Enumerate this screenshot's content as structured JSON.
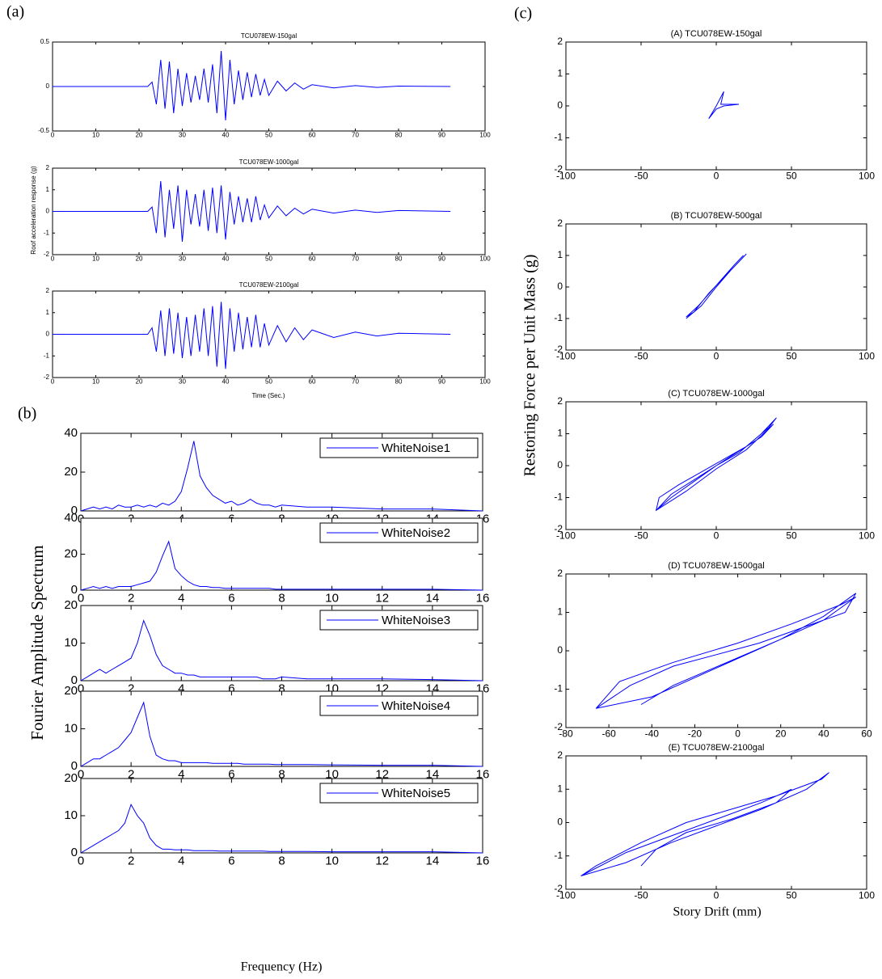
{
  "panels": {
    "a": {
      "label": "(a)",
      "y_label": "Roof acceleration response (g)",
      "x_label": "Time (Sec.)"
    },
    "b": {
      "label": "(b)",
      "y_label": "Fourier Amplitude Spectrum",
      "x_label": "Frequency (Hz)"
    },
    "c": {
      "label": "(c)",
      "y_label": "Restoring Force per Unit Mass (g)",
      "x_label": "Story Drift (mm)"
    }
  },
  "chart_data": [
    {
      "type": "line",
      "title": "TCU078EW-150gal",
      "x": [
        0,
        22,
        23,
        24,
        25,
        26,
        27,
        28,
        29,
        30,
        31,
        32,
        33,
        34,
        35,
        36,
        37,
        38,
        39,
        40,
        41,
        42,
        43,
        44,
        45,
        46,
        47,
        48,
        49,
        50,
        52,
        54,
        56,
        58,
        60,
        65,
        70,
        75,
        80,
        92
      ],
      "series": [
        {
          "color": "#0000ff",
          "values": [
            0,
            0,
            0.05,
            -0.2,
            0.3,
            -0.25,
            0.28,
            -0.3,
            0.2,
            -0.22,
            0.15,
            -0.18,
            0.12,
            -0.15,
            0.2,
            -0.18,
            0.25,
            -0.3,
            0.4,
            -0.38,
            0.3,
            -0.2,
            0.18,
            -0.15,
            0.16,
            -0.12,
            0.14,
            -0.1,
            0.08,
            -0.1,
            0.06,
            -0.05,
            0.04,
            -0.03,
            0.02,
            -0.015,
            0.01,
            -0.01,
            0.005,
            0
          ]
        }
      ],
      "xlim": [
        0,
        100
      ],
      "xticks": [
        0,
        10,
        20,
        30,
        40,
        50,
        60,
        70,
        80,
        90,
        100
      ],
      "ylim": [
        -0.5,
        0.5
      ],
      "yticks": [
        -0.5,
        0,
        0.5
      ]
    },
    {
      "type": "line",
      "title": "TCU078EW-1000gal",
      "x": [
        0,
        22,
        23,
        24,
        25,
        26,
        27,
        28,
        29,
        30,
        31,
        32,
        33,
        34,
        35,
        36,
        37,
        38,
        39,
        40,
        41,
        42,
        43,
        44,
        45,
        46,
        47,
        48,
        49,
        50,
        52,
        54,
        56,
        58,
        60,
        65,
        70,
        75,
        80,
        92
      ],
      "series": [
        {
          "color": "#0000ff",
          "values": [
            0,
            0,
            0.2,
            -1.0,
            1.4,
            -1.2,
            1.0,
            -0.8,
            1.2,
            -1.4,
            1.0,
            -0.6,
            0.8,
            -0.7,
            1.0,
            -0.9,
            1.1,
            -1.0,
            1.2,
            -1.3,
            0.9,
            -0.6,
            0.7,
            -0.5,
            0.6,
            -0.5,
            0.7,
            -0.4,
            0.3,
            -0.3,
            0.25,
            -0.2,
            0.15,
            -0.12,
            0.1,
            -0.08,
            0.06,
            -0.05,
            0.04,
            0
          ]
        }
      ],
      "xlim": [
        0,
        100
      ],
      "xticks": [
        0,
        10,
        20,
        30,
        40,
        50,
        60,
        70,
        80,
        90,
        100
      ],
      "ylim": [
        -2,
        2
      ],
      "yticks": [
        -2,
        -1,
        0,
        1,
        2
      ]
    },
    {
      "type": "line",
      "title": "TCU078EW-2100gal",
      "x": [
        0,
        22,
        23,
        24,
        25,
        26,
        27,
        28,
        29,
        30,
        31,
        32,
        33,
        34,
        35,
        36,
        37,
        38,
        39,
        40,
        41,
        42,
        43,
        44,
        45,
        46,
        47,
        48,
        49,
        50,
        52,
        54,
        56,
        58,
        60,
        65,
        70,
        75,
        80,
        92
      ],
      "series": [
        {
          "color": "#0000ff",
          "values": [
            0,
            0,
            0.3,
            -0.8,
            1.1,
            -1.0,
            1.2,
            -0.9,
            1.0,
            -1.1,
            0.8,
            -1.0,
            0.9,
            -0.8,
            1.2,
            -1.0,
            1.3,
            -1.5,
            1.5,
            -1.6,
            1.2,
            -0.8,
            1.0,
            -0.7,
            0.8,
            -0.6,
            0.9,
            -0.6,
            0.5,
            -0.5,
            0.4,
            -0.35,
            0.3,
            -0.25,
            0.2,
            -0.15,
            0.1,
            -0.08,
            0.05,
            0
          ]
        }
      ],
      "xlim": [
        0,
        100
      ],
      "xticks": [
        0,
        10,
        20,
        30,
        40,
        50,
        60,
        70,
        80,
        90,
        100
      ],
      "ylim": [
        -2,
        2
      ],
      "yticks": [
        -2,
        -1,
        0,
        1,
        2
      ]
    },
    {
      "type": "line",
      "x": [
        0,
        0.25,
        0.5,
        0.75,
        1,
        1.25,
        1.5,
        1.75,
        2,
        2.25,
        2.5,
        2.75,
        3,
        3.25,
        3.5,
        3.75,
        4,
        4.25,
        4.5,
        4.75,
        5,
        5.25,
        5.5,
        5.75,
        6,
        6.25,
        6.5,
        6.75,
        7,
        7.25,
        7.5,
        7.75,
        8,
        9,
        10,
        12,
        14,
        16
      ],
      "series": [
        {
          "name": "WhiteNoise1",
          "color": "#0000ff",
          "values": [
            0,
            1,
            2,
            1,
            2,
            1,
            3,
            2,
            2,
            3,
            2,
            3,
            2,
            4,
            3,
            5,
            10,
            22,
            36,
            18,
            12,
            8,
            6,
            4,
            5,
            3,
            4,
            6,
            4,
            3,
            3,
            2,
            3,
            2,
            2,
            1,
            1,
            0
          ]
        }
      ],
      "xlim": [
        0,
        16
      ],
      "xticks": [
        0,
        2,
        4,
        6,
        8,
        10,
        12,
        14,
        16
      ],
      "ylim": [
        0,
        40
      ],
      "yticks": [
        0,
        20,
        40
      ]
    },
    {
      "type": "line",
      "x": [
        0,
        0.25,
        0.5,
        0.75,
        1,
        1.25,
        1.5,
        1.75,
        2,
        2.25,
        2.5,
        2.75,
        3,
        3.25,
        3.5,
        3.75,
        4,
        4.25,
        4.5,
        4.75,
        5,
        5.25,
        5.5,
        5.75,
        6,
        6.25,
        6.5,
        6.75,
        7,
        7.25,
        7.5,
        7.75,
        8,
        9,
        10,
        12,
        14,
        16
      ],
      "series": [
        {
          "name": "WhiteNoise2",
          "color": "#0000ff",
          "values": [
            0,
            1,
            2,
            1,
            2,
            1,
            2,
            2,
            2,
            3,
            4,
            5,
            10,
            19,
            27,
            12,
            8,
            5,
            3,
            2,
            2,
            1.5,
            1.5,
            1,
            1,
            1,
            1,
            1,
            1,
            1,
            1,
            0.5,
            0.5,
            0.5,
            0.5,
            0.5,
            0.5,
            0
          ]
        }
      ],
      "xlim": [
        0,
        16
      ],
      "xticks": [
        0,
        2,
        4,
        6,
        8,
        10,
        12,
        14,
        16
      ],
      "ylim": [
        0,
        40
      ],
      "yticks": [
        0,
        20,
        40
      ]
    },
    {
      "type": "line",
      "x": [
        0,
        0.25,
        0.5,
        0.75,
        1,
        1.25,
        1.5,
        1.75,
        2,
        2.25,
        2.5,
        2.75,
        3,
        3.25,
        3.5,
        3.75,
        4,
        4.25,
        4.5,
        4.75,
        5,
        5.25,
        5.5,
        5.75,
        6,
        6.25,
        6.5,
        6.75,
        7,
        7.25,
        7.5,
        7.75,
        8,
        9,
        10,
        12,
        14,
        16
      ],
      "series": [
        {
          "name": "WhiteNoise3",
          "color": "#0000ff",
          "values": [
            0,
            1,
            2,
            3,
            2,
            3,
            4,
            5,
            6,
            10,
            16,
            12,
            7,
            4,
            3,
            2,
            2,
            1.5,
            1.5,
            1,
            1,
            1,
            1,
            1,
            1,
            1,
            1,
            1,
            1,
            0.5,
            0.5,
            0.5,
            1,
            0.5,
            0.5,
            0.5,
            0.3,
            0
          ]
        }
      ],
      "xlim": [
        0,
        16
      ],
      "xticks": [
        0,
        2,
        4,
        6,
        8,
        10,
        12,
        14,
        16
      ],
      "ylim": [
        0,
        20
      ],
      "yticks": [
        0,
        10,
        20
      ]
    },
    {
      "type": "line",
      "x": [
        0,
        0.25,
        0.5,
        0.75,
        1,
        1.25,
        1.5,
        1.75,
        2,
        2.25,
        2.5,
        2.75,
        3,
        3.25,
        3.5,
        3.75,
        4,
        4.25,
        4.5,
        4.75,
        5,
        5.25,
        5.5,
        5.75,
        6,
        6.25,
        6.5,
        6.75,
        7,
        7.25,
        7.5,
        7.75,
        8,
        9,
        10,
        12,
        14,
        16
      ],
      "series": [
        {
          "name": "WhiteNoise4",
          "color": "#0000ff",
          "values": [
            0,
            1,
            2,
            2,
            3,
            4,
            5,
            7,
            9,
            13,
            17,
            8,
            3,
            2,
            1.5,
            1.5,
            1,
            1,
            1,
            1,
            1,
            0.8,
            0.8,
            0.8,
            0.8,
            0.8,
            0.6,
            0.6,
            0.6,
            0.6,
            0.6,
            0.5,
            0.5,
            0.5,
            0.4,
            0.3,
            0.3,
            0
          ]
        }
      ],
      "xlim": [
        0,
        16
      ],
      "xticks": [
        0,
        2,
        4,
        6,
        8,
        10,
        12,
        14,
        16
      ],
      "ylim": [
        0,
        20
      ],
      "yticks": [
        0,
        10,
        20
      ]
    },
    {
      "type": "line",
      "x": [
        0,
        0.25,
        0.5,
        0.75,
        1,
        1.25,
        1.5,
        1.75,
        2,
        2.25,
        2.5,
        2.75,
        3,
        3.25,
        3.5,
        3.75,
        4,
        4.25,
        4.5,
        4.75,
        5,
        5.25,
        5.5,
        5.75,
        6,
        6.25,
        6.5,
        6.75,
        7,
        7.25,
        7.5,
        7.75,
        8,
        9,
        10,
        12,
        14,
        16
      ],
      "series": [
        {
          "name": "WhiteNoise5",
          "color": "#0000ff",
          "values": [
            0,
            1,
            2,
            3,
            4,
            5,
            6,
            8,
            13,
            10,
            8,
            4,
            2,
            1,
            1,
            0.8,
            0.8,
            0.8,
            0.6,
            0.6,
            0.6,
            0.6,
            0.5,
            0.5,
            0.5,
            0.5,
            0.5,
            0.5,
            0.5,
            0.5,
            0.4,
            0.4,
            0.4,
            0.4,
            0.3,
            0.3,
            0.3,
            0
          ]
        }
      ],
      "xlim": [
        0,
        16
      ],
      "xticks": [
        0,
        2,
        4,
        6,
        8,
        10,
        12,
        14,
        16
      ],
      "ylim": [
        0,
        20
      ],
      "yticks": [
        0,
        10,
        20
      ]
    },
    {
      "type": "line",
      "title": "(A) TCU078EW-150gal",
      "x": [
        -5,
        0,
        5,
        3,
        15,
        5,
        0,
        -5
      ],
      "series": [
        {
          "color": "#0000ff",
          "values": [
            -0.4,
            0,
            0.45,
            0.05,
            0.05,
            0,
            -0.1,
            -0.4
          ]
        }
      ],
      "xlim": [
        -100,
        100
      ],
      "xticks": [
        -100,
        -50,
        0,
        50,
        100
      ],
      "ylim": [
        -2,
        2
      ],
      "yticks": [
        -2,
        -1,
        0,
        1,
        2
      ]
    },
    {
      "type": "line",
      "title": "(B) TCU078EW-500gal",
      "x": [
        -20,
        -10,
        0,
        10,
        20,
        15,
        5,
        -5,
        -15,
        -20,
        -12,
        0,
        12,
        18
      ],
      "series": [
        {
          "color": "#0000ff",
          "values": [
            -1,
            -0.6,
            0,
            0.55,
            1.05,
            0.8,
            0.3,
            -0.2,
            -0.8,
            -0.95,
            -0.6,
            0.05,
            0.7,
            1.0
          ]
        }
      ],
      "xlim": [
        -100,
        100
      ],
      "xticks": [
        -100,
        -50,
        0,
        50,
        100
      ],
      "ylim": [
        -2,
        2
      ],
      "yticks": [
        -2,
        -1,
        0,
        1,
        2
      ]
    },
    {
      "type": "line",
      "title": "(C) TCU078EW-1000gal",
      "x": [
        -40,
        -30,
        -15,
        0,
        15,
        30,
        40,
        35,
        20,
        5,
        -10,
        -25,
        -38,
        -40,
        -20,
        0,
        20,
        38,
        30,
        10,
        -10,
        -30,
        -40
      ],
      "series": [
        {
          "color": "#0000ff",
          "values": [
            -1.4,
            -1.0,
            -0.5,
            0,
            0.4,
            1.0,
            1.5,
            1.2,
            0.6,
            0.2,
            -0.2,
            -0.6,
            -1.0,
            -1.4,
            -0.8,
            -0.1,
            0.5,
            1.3,
            0.9,
            0.3,
            -0.3,
            -0.9,
            -1.4
          ]
        }
      ],
      "xlim": [
        -100,
        100
      ],
      "xticks": [
        -100,
        -50,
        0,
        50,
        100
      ],
      "ylim": [
        -2,
        2
      ],
      "yticks": [
        -2,
        -1,
        0,
        1,
        2
      ]
    },
    {
      "type": "line",
      "title": "(D) TCU078EW-1500gal",
      "x": [
        -66,
        -40,
        -20,
        0,
        20,
        40,
        55,
        50,
        30,
        10,
        -10,
        -30,
        -50,
        -66,
        -55,
        -30,
        0,
        25,
        48,
        55,
        40,
        20,
        -5,
        -30,
        -45
      ],
      "series": [
        {
          "color": "#0000ff",
          "values": [
            -1.5,
            -1.2,
            -0.7,
            -0.2,
            0.3,
            0.9,
            1.5,
            1.0,
            0.6,
            0.2,
            -0.1,
            -0.4,
            -0.9,
            -1.5,
            -0.8,
            -0.3,
            0.2,
            0.7,
            1.2,
            1.4,
            0.8,
            0.3,
            -0.3,
            -0.9,
            -1.4
          ]
        }
      ],
      "xlim": [
        -80,
        60
      ],
      "xticks": [
        -80,
        -60,
        -40,
        -20,
        0,
        20,
        40,
        60
      ],
      "ylim": [
        -2,
        2
      ],
      "yticks": [
        -2,
        -1,
        0,
        1,
        2
      ]
    },
    {
      "type": "line",
      "title": "(E) TCU078EW-2100gal",
      "x": [
        -90,
        -60,
        -30,
        0,
        30,
        60,
        75,
        70,
        40,
        10,
        -20,
        -50,
        -80,
        -90,
        -60,
        -30,
        0,
        30,
        50,
        40,
        10,
        -20,
        -40,
        -50
      ],
      "series": [
        {
          "color": "#0000ff",
          "values": [
            -1.6,
            -1.2,
            -0.6,
            -0.1,
            0.4,
            1.0,
            1.5,
            1.3,
            0.8,
            0.4,
            0,
            -0.6,
            -1.3,
            -1.6,
            -0.9,
            -0.4,
            0.1,
            0.6,
            1.0,
            0.6,
            0.1,
            -0.3,
            -0.8,
            -1.3
          ]
        }
      ],
      "xlim": [
        -100,
        100
      ],
      "xticks": [
        -100,
        -50,
        0,
        50,
        100
      ],
      "ylim": [
        -2,
        2
      ],
      "yticks": [
        -2,
        -1,
        0,
        1,
        2
      ]
    }
  ]
}
